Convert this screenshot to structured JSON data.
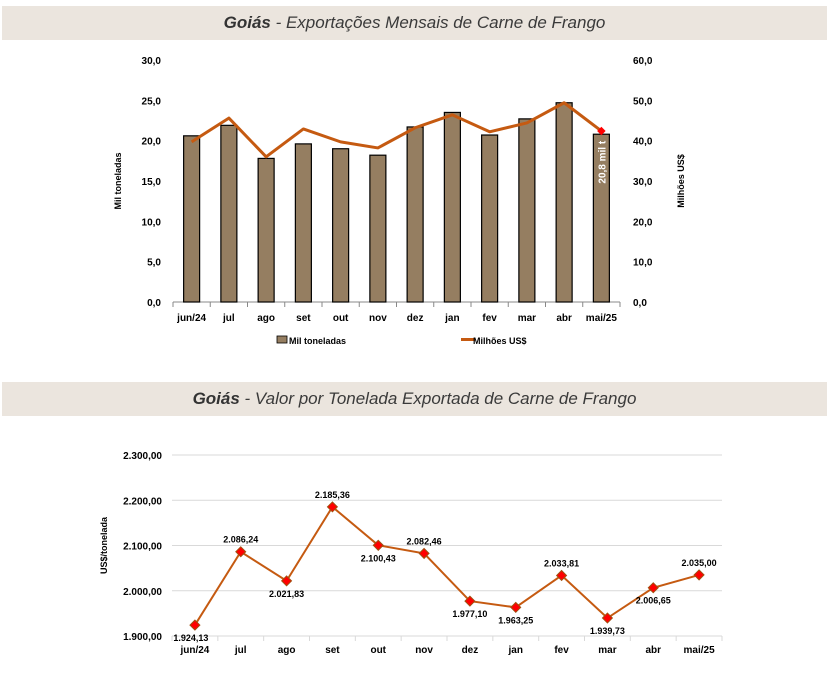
{
  "banners": {
    "b1": {
      "bold": "Goiás",
      "rest": " - Exportações Mensais de Carne de Frango"
    },
    "b2": {
      "bold": "Goiás",
      "rest": " - Valor por Tonelada Exportada de Carne de Frango"
    }
  },
  "colors": {
    "bar": "#957e61",
    "line": "#c55a11",
    "marker": "#ff0000",
    "banner": "#ebe5de"
  },
  "chart_data": [
    {
      "type": "bar",
      "title": "Goiás - Exportações Mensais de Carne de Frango",
      "categories": [
        "jun/24",
        "jul",
        "ago",
        "set",
        "out",
        "nov",
        "dez",
        "jan",
        "fev",
        "mar",
        "abr",
        "mai/25"
      ],
      "series": [
        {
          "name": "Mil toneladas",
          "type": "bar",
          "axis": "left",
          "values": [
            20.6,
            21.9,
            17.8,
            19.6,
            19.0,
            18.2,
            21.7,
            23.5,
            20.7,
            22.7,
            24.7,
            20.8
          ]
        },
        {
          "name": "Milhões US$",
          "type": "line",
          "axis": "right",
          "values": [
            39.7,
            45.6,
            36.0,
            42.9,
            39.7,
            38.2,
            43.2,
            46.4,
            42.2,
            44.4,
            49.4,
            42.4
          ]
        }
      ],
      "ylabel": "Mil toneladas",
      "y2label": "Milhões US$",
      "ylim": [
        0,
        30
      ],
      "y2lim": [
        0,
        60
      ],
      "yticks": [
        "0,0",
        "5,0",
        "10,0",
        "15,0",
        "20,0",
        "25,0",
        "30,0"
      ],
      "y2ticks": [
        "0,0",
        "10,0",
        "20,0",
        "30,0",
        "40,0",
        "50,0",
        "60,0"
      ],
      "annotation": "20,8 mil t",
      "legend": [
        "Mil toneladas",
        "Milhões US$"
      ],
      "legend_position": "bottom",
      "grid": false
    },
    {
      "type": "line",
      "title": "Goiás - Valor por Tonelada Exportada de Carne de Frango",
      "categories": [
        "jun/24",
        "jul",
        "ago",
        "set",
        "out",
        "nov",
        "dez",
        "jan",
        "fev",
        "mar",
        "abr",
        "mai/25"
      ],
      "values": [
        1924.13,
        2086.24,
        2021.83,
        2185.36,
        2100.43,
        2082.46,
        1977.1,
        1963.25,
        2033.81,
        1939.73,
        2006.65,
        2035.0
      ],
      "labels": [
        "1.924,13",
        "2.086,24",
        "2.021,83",
        "2.185,36",
        "2.100,43",
        "2.082,46",
        "1.977,10",
        "1.963,25",
        "2.033,81",
        "1.939,73",
        "2.006,65",
        "2.035,00"
      ],
      "label_pos": [
        "below",
        "above",
        "below",
        "above",
        "below",
        "above",
        "below",
        "below",
        "above",
        "below",
        "below",
        "above"
      ],
      "ylabel": "US$/tonelada",
      "ylim": [
        1900,
        2300
      ],
      "yticks": [
        "1.900,00",
        "2.000,00",
        "2.100,00",
        "2.200,00",
        "2.300,00"
      ],
      "grid": true
    }
  ]
}
